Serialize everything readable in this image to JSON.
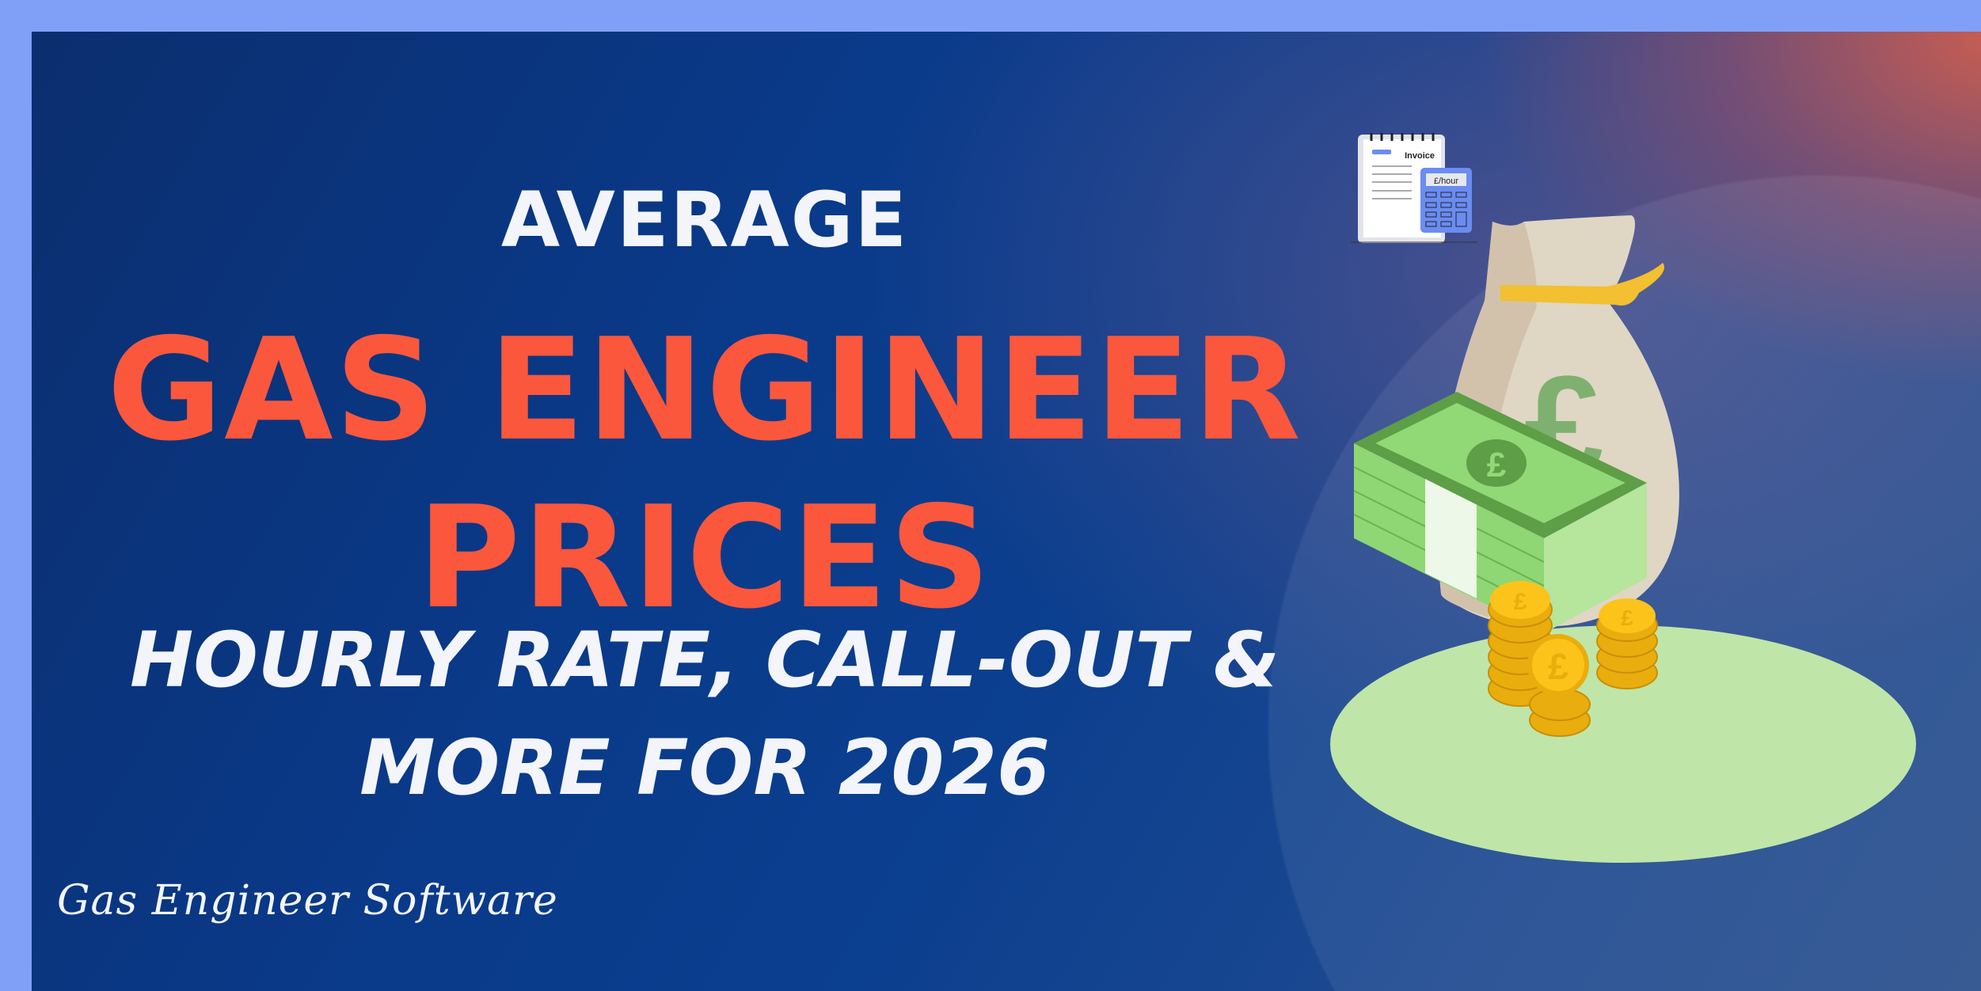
{
  "headline": {
    "line1": "AVERAGE",
    "line2": "GAS ENGINEER",
    "line3": "PRICES",
    "line4": "HOURLY RATE, CALL-OUT &",
    "line5": "MORE FOR 2026"
  },
  "brand": {
    "signature": "Gas Engineer Software"
  },
  "illustration": {
    "invoice_label": "Invoice",
    "calculator_display": "£/hour",
    "currency_symbol": "£"
  },
  "colors": {
    "border": "#80a0f8",
    "background": "#0b3a8a",
    "accent": "#fb573c",
    "text": "#f3f5fb"
  }
}
